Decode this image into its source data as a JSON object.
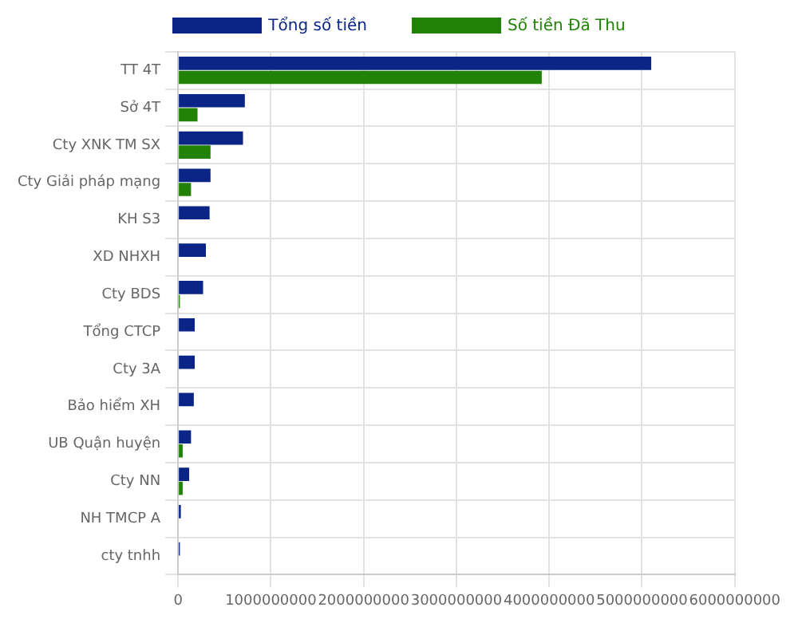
{
  "chart_data": {
    "type": "bar",
    "orientation": "horizontal",
    "categories": [
      "TT 4T",
      "Sở 4T",
      "Cty XNK TM SX",
      "Cty Giải pháp mạng",
      "KH S3",
      "XD NHXH",
      "Cty BDS",
      "Tổng CTCP",
      "Cty 3A",
      "Bảo hiểm XH",
      "UB Quận huyện",
      "Cty NN",
      "NH TMCP A",
      "cty tnhh"
    ],
    "series": [
      {
        "name": "Tổng số tiền",
        "color": "#0a2585",
        "values": [
          5100000000,
          720000000,
          700000000,
          350000000,
          340000000,
          300000000,
          270000000,
          180000000,
          180000000,
          170000000,
          140000000,
          120000000,
          30000000,
          20000000
        ]
      },
      {
        "name": "Số tiền Đã Thu",
        "color": "#228206",
        "values": [
          3920000000,
          210000000,
          350000000,
          140000000,
          null,
          null,
          20000000,
          null,
          null,
          null,
          50000000,
          50000000,
          null,
          null
        ]
      }
    ],
    "xlim": [
      0,
      6000000000
    ],
    "xticks": [
      0,
      1000000000,
      2000000000,
      3000000000,
      4000000000,
      5000000000,
      6000000000
    ],
    "grid": true,
    "legend": "top"
  }
}
